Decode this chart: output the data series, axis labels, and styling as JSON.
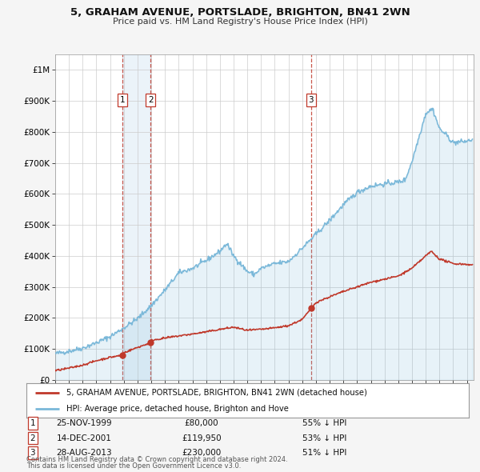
{
  "title1": "5, GRAHAM AVENUE, PORTSLADE, BRIGHTON, BN41 2WN",
  "title2": "Price paid vs. HM Land Registry's House Price Index (HPI)",
  "bg_color": "#f5f5f5",
  "plot_bg_color": "#ffffff",
  "red_line_label": "5, GRAHAM AVENUE, PORTSLADE, BRIGHTON, BN41 2WN (detached house)",
  "blue_line_label": "HPI: Average price, detached house, Brighton and Hove",
  "transactions": [
    {
      "num": 1,
      "date": "25-NOV-1999",
      "price": "£80,000",
      "pct": "55% ↓ HPI",
      "year": 1999.9
    },
    {
      "num": 2,
      "date": "14-DEC-2001",
      "price": "£119,950",
      "pct": "53% ↓ HPI",
      "year": 2001.95
    },
    {
      "num": 3,
      "date": "28-AUG-2013",
      "price": "£230,000",
      "pct": "51% ↓ HPI",
      "year": 2013.65
    }
  ],
  "footer1": "Contains HM Land Registry data © Crown copyright and database right 2024.",
  "footer2": "This data is licensed under the Open Government Licence v3.0.",
  "hpi_color": "#7ab8d9",
  "price_color": "#c0392b",
  "vline_color": "#c0392b",
  "shade_color": "#c8dff0",
  "ylim_max": 1050000,
  "xmin": 1995,
  "xmax": 2025.5,
  "yticks": [
    0,
    100000,
    200000,
    300000,
    400000,
    500000,
    600000,
    700000,
    800000,
    900000,
    1000000
  ],
  "ylabels": [
    "£0",
    "£100K",
    "£200K",
    "£300K",
    "£400K",
    "£500K",
    "£600K",
    "£700K",
    "£800K",
    "£900K",
    "£1M"
  ]
}
